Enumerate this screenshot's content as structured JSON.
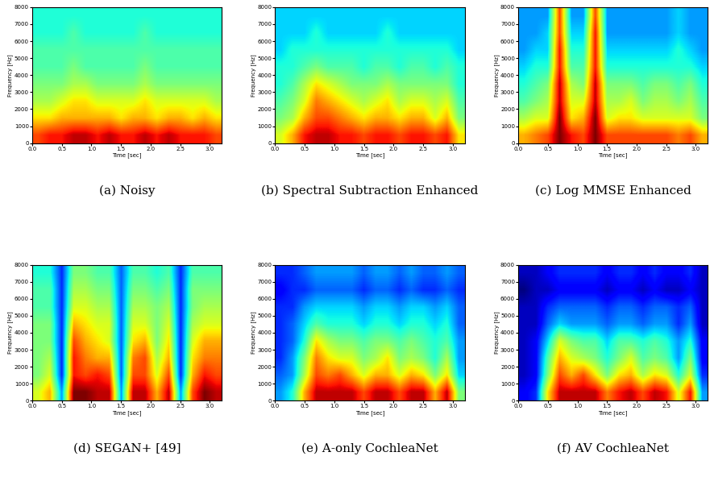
{
  "chart_data": [
    {
      "type": "heatmap",
      "caption": "(a) Noisy",
      "x_label": "Time [sec]",
      "y_label": "Frequency [Hz]",
      "xlim": [
        0,
        3.2
      ],
      "ylim": [
        0,
        8000
      ],
      "xticks": [
        {
          "value": 0,
          "label": "0.0"
        },
        {
          "value": 0.5,
          "label": "0.5"
        },
        {
          "value": 1,
          "label": "1.0"
        },
        {
          "value": 1.5,
          "label": "1.5"
        },
        {
          "value": 2,
          "label": "2.0"
        },
        {
          "value": 2.5,
          "label": "2.5"
        },
        {
          "value": 3,
          "label": "3.0"
        }
      ],
      "yticks": [
        0,
        1000,
        2000,
        3000,
        4000,
        5000,
        6000,
        7000,
        8000
      ],
      "cells": [
        [
          8,
          8.5,
          8.5,
          9,
          9,
          8.5,
          9,
          8.5,
          8.5,
          9,
          8.5,
          9,
          8.5,
          8.5,
          8.5,
          8
        ],
        [
          6.5,
          6.5,
          7,
          7,
          7,
          7,
          7,
          6.5,
          7,
          7,
          6.5,
          7,
          7,
          6.5,
          7,
          6.5
        ],
        [
          5.5,
          5.5,
          6,
          6.5,
          6.5,
          6,
          6,
          6,
          6,
          6.5,
          6,
          6,
          6,
          6,
          6,
          5.5
        ],
        [
          5,
          5,
          5,
          5.5,
          5.5,
          5,
          5,
          5,
          5,
          5.5,
          5,
          5,
          5,
          5,
          5,
          5
        ],
        [
          4.5,
          4.5,
          4.5,
          5,
          4.5,
          4.5,
          4.5,
          4.5,
          4.5,
          5,
          4.5,
          4.5,
          4.5,
          4.5,
          4.5,
          4.5
        ],
        [
          4.5,
          4.5,
          4.5,
          4.5,
          4.5,
          4.5,
          4.5,
          4.5,
          4.5,
          4.5,
          4.5,
          4.5,
          4.5,
          4.5,
          4.5,
          4.5
        ],
        [
          4,
          4,
          4,
          4.5,
          4,
          4,
          4,
          4,
          4,
          4.5,
          4,
          4,
          4,
          4,
          4,
          4
        ],
        [
          4,
          4,
          4,
          4,
          4,
          4,
          4,
          4,
          4,
          4,
          4,
          4,
          4,
          4,
          4,
          4
        ]
      ]
    },
    {
      "type": "heatmap",
      "caption": "(b) Spectral Subtraction Enhanced",
      "x_label": "Time [sec]",
      "y_label": "Frequency [Hz]",
      "xlim": [
        0,
        3.2
      ],
      "ylim": [
        0,
        8000
      ],
      "xticks": [
        {
          "value": 0,
          "label": "0.0"
        },
        {
          "value": 0.5,
          "label": "0.5"
        },
        {
          "value": 1,
          "label": "1.0"
        },
        {
          "value": 1.5,
          "label": "1.5"
        },
        {
          "value": 2,
          "label": "2.0"
        },
        {
          "value": 2.5,
          "label": "2.5"
        },
        {
          "value": 3,
          "label": "3.0"
        }
      ],
      "yticks": [
        0,
        1000,
        2000,
        3000,
        4000,
        5000,
        6000,
        7000,
        8000
      ],
      "cells": [
        [
          6,
          7,
          8.5,
          9,
          9,
          8.5,
          8.5,
          8,
          8.5,
          8.5,
          8,
          8.5,
          8.5,
          8,
          8.5,
          6.5
        ],
        [
          5,
          5.5,
          7,
          8,
          8,
          7.5,
          7,
          6.5,
          7,
          7,
          6.5,
          7,
          7,
          6,
          7,
          5
        ],
        [
          4.5,
          5,
          6,
          7.5,
          7,
          6.5,
          6,
          5.5,
          6,
          6.5,
          5.5,
          6,
          6,
          5.5,
          6,
          4.5
        ],
        [
          4,
          4.5,
          5.5,
          6.5,
          6,
          5.5,
          5,
          5,
          5,
          5.5,
          5,
          5,
          5,
          5,
          5,
          4
        ],
        [
          4,
          4,
          4.5,
          5,
          4.5,
          4.5,
          4.5,
          4,
          4.5,
          4.5,
          4,
          4.5,
          4.5,
          4,
          4.5,
          4
        ],
        [
          3.5,
          4,
          4,
          4,
          4,
          4,
          4,
          4,
          4,
          4,
          4,
          4,
          4,
          4,
          4,
          3.5
        ],
        [
          3.5,
          3.5,
          3.5,
          4,
          3.5,
          3.5,
          3.5,
          3.5,
          3.5,
          4,
          3.5,
          3.5,
          3.5,
          3.5,
          3.5,
          3.5
        ],
        [
          3.5,
          3.5,
          3.5,
          3.5,
          3.5,
          3.5,
          3.5,
          3.5,
          3.5,
          3.5,
          3.5,
          3.5,
          3.5,
          3.5,
          3.5,
          3.5
        ]
      ]
    },
    {
      "type": "heatmap",
      "caption": "(c) Log MMSE Enhanced",
      "x_label": "Time [sec]",
      "y_label": "Frequency [Hz]",
      "xlim": [
        0,
        3.2
      ],
      "ylim": [
        0,
        8000
      ],
      "xticks": [
        {
          "value": 0,
          "label": "0.0"
        },
        {
          "value": 0.5,
          "label": "0.5"
        },
        {
          "value": 1,
          "label": "1.0"
        },
        {
          "value": 1.5,
          "label": "1.5"
        },
        {
          "value": 2,
          "label": "2.0"
        },
        {
          "value": 2.5,
          "label": "2.5"
        },
        {
          "value": 3,
          "label": "3.0"
        }
      ],
      "yticks": [
        0,
        1000,
        2000,
        3000,
        4000,
        5000,
        6000,
        7000,
        8000
      ],
      "cells": [
        [
          7,
          7.5,
          8,
          9.5,
          8.5,
          8,
          9.5,
          8,
          8,
          8,
          8,
          8,
          8,
          7.5,
          8,
          7
        ],
        [
          5.5,
          6,
          6,
          9.5,
          6.5,
          7,
          9.5,
          6,
          6.5,
          6.5,
          6,
          6,
          6,
          6,
          6,
          5
        ],
        [
          4.5,
          5,
          5.5,
          9,
          6,
          6,
          9,
          5.5,
          5.5,
          6,
          5,
          5.5,
          5.5,
          5,
          5.5,
          4.5
        ],
        [
          4,
          4.5,
          5,
          9,
          5.5,
          5,
          9,
          5,
          5,
          5,
          4.5,
          5,
          5,
          4.5,
          5,
          4
        ],
        [
          3.5,
          4,
          4,
          8.5,
          4.5,
          4.5,
          8.5,
          4,
          4,
          4,
          4,
          4,
          4,
          4,
          4,
          3.5
        ],
        [
          3,
          3.5,
          3.5,
          8.5,
          4,
          4,
          8.5,
          3.5,
          3.5,
          3.5,
          3.5,
          3.5,
          3.5,
          4,
          3.5,
          3
        ],
        [
          3,
          3,
          3.5,
          8,
          3.5,
          3.5,
          8.5,
          3,
          3,
          3,
          3,
          3,
          3,
          3.5,
          3,
          3
        ],
        [
          3,
          3,
          3,
          8,
          3,
          3,
          8,
          3,
          3,
          3,
          3,
          3,
          3,
          3.5,
          3,
          3
        ]
      ]
    },
    {
      "type": "heatmap",
      "caption": "(d) SEGAN+ [49]",
      "x_label": "Time [sec]",
      "y_label": "Frequency [Hz]",
      "xlim": [
        0,
        3.2
      ],
      "ylim": [
        0,
        8000
      ],
      "xticks": [
        {
          "value": 0,
          "label": "0.0"
        },
        {
          "value": 0.5,
          "label": "0.5"
        },
        {
          "value": 1,
          "label": "1.0"
        },
        {
          "value": 1.5,
          "label": "1.5"
        },
        {
          "value": 2,
          "label": "2.0"
        },
        {
          "value": 2.5,
          "label": "2.5"
        },
        {
          "value": 3,
          "label": "3.0"
        }
      ],
      "yticks": [
        0,
        1000,
        2000,
        3000,
        4000,
        5000,
        6000,
        7000,
        8000
      ],
      "cells": [
        [
          6,
          7,
          3,
          9.5,
          9.5,
          9,
          9,
          3,
          9,
          9,
          7,
          9,
          3,
          8,
          9.5,
          9
        ],
        [
          5,
          6,
          2,
          8.5,
          8,
          8.5,
          8,
          2.5,
          8,
          8,
          6,
          8,
          2,
          7,
          8.5,
          8
        ],
        [
          5,
          5.5,
          2,
          8.5,
          7.5,
          7,
          7,
          2.5,
          7.5,
          8,
          5.5,
          7,
          2,
          6.5,
          7.5,
          7.5
        ],
        [
          5,
          5,
          2,
          8,
          7,
          6.5,
          6,
          2.5,
          6.5,
          7,
          5,
          6.5,
          2,
          6,
          7,
          7
        ],
        [
          5,
          5,
          2,
          7,
          6.5,
          6,
          6,
          2.5,
          6,
          6,
          5,
          6,
          2,
          5.5,
          6,
          6
        ],
        [
          4.5,
          4.5,
          2,
          6,
          6,
          5.5,
          5.5,
          2.5,
          5.5,
          5.5,
          5,
          5.5,
          2,
          5,
          5.5,
          5.5
        ],
        [
          4.5,
          4.5,
          2,
          5.5,
          5.5,
          5,
          5,
          2.5,
          5,
          5,
          4.5,
          5,
          2,
          5,
          5,
          5
        ],
        [
          4,
          4,
          2,
          5,
          5,
          4.5,
          4.5,
          2.5,
          4.5,
          4.5,
          4,
          4.5,
          2,
          4.5,
          4.5,
          4.5
        ]
      ]
    },
    {
      "type": "heatmap",
      "caption": "(e) A-only CochleaNet",
      "x_label": "Time [sec]",
      "y_label": "Frequency [Hz]",
      "xlim": [
        0,
        3.2
      ],
      "ylim": [
        0,
        8000
      ],
      "xticks": [
        {
          "value": 0,
          "label": "0.0"
        },
        {
          "value": 0.5,
          "label": "0.5"
        },
        {
          "value": 1,
          "label": "1.0"
        },
        {
          "value": 1.5,
          "label": "1.5"
        },
        {
          "value": 2,
          "label": "2.0"
        },
        {
          "value": 2.5,
          "label": "2.5"
        },
        {
          "value": 3,
          "label": "3.0"
        }
      ],
      "yticks": [
        0,
        1000,
        2000,
        3000,
        4000,
        5000,
        6000,
        7000,
        8000
      ],
      "cells": [
        [
          3,
          4,
          7,
          9,
          9,
          9,
          9,
          8,
          9,
          9,
          8,
          9,
          9,
          7,
          9,
          5
        ],
        [
          2.5,
          3,
          5.5,
          8,
          7.5,
          8,
          7,
          6,
          7,
          7,
          6,
          7,
          6.5,
          5,
          6.5,
          3.5
        ],
        [
          2,
          3,
          5,
          7.5,
          6.5,
          6,
          6,
          5,
          5.5,
          6.5,
          5,
          5.5,
          5,
          4,
          5.5,
          3
        ],
        [
          2,
          2.5,
          4,
          6.5,
          5.5,
          5,
          5,
          4.5,
          5,
          5,
          4.5,
          5,
          4.5,
          4,
          4.5,
          3
        ],
        [
          2,
          2.5,
          3.5,
          4.5,
          4,
          4,
          4,
          3.5,
          4,
          4,
          3.5,
          4,
          4,
          3.5,
          4,
          2.5
        ],
        [
          2,
          2,
          3,
          3.5,
          3.5,
          3.5,
          3.5,
          3,
          3.5,
          3.5,
          3,
          3.5,
          3.5,
          3,
          3.5,
          2.5
        ],
        [
          1.5,
          2,
          2,
          2.5,
          2.5,
          2.5,
          2.5,
          2,
          2.5,
          2.5,
          2,
          2.5,
          2,
          2,
          2.5,
          2
        ],
        [
          2,
          2,
          2.5,
          3,
          3,
          3,
          3,
          2.5,
          3,
          3,
          2.5,
          3,
          2.5,
          2.5,
          3,
          2.5
        ]
      ]
    },
    {
      "type": "heatmap",
      "caption": "(f) AV CochleaNet",
      "x_label": "Time [sec]",
      "y_label": "Frequency [Hz]",
      "xlim": [
        0,
        3.2
      ],
      "ylim": [
        0,
        8000
      ],
      "xticks": [
        {
          "value": 0,
          "label": "0.0"
        },
        {
          "value": 0.5,
          "label": "0.5"
        },
        {
          "value": 1,
          "label": "1.0"
        },
        {
          "value": 1.5,
          "label": "1.5"
        },
        {
          "value": 2,
          "label": "2.0"
        },
        {
          "value": 2.5,
          "label": "2.5"
        },
        {
          "value": 3,
          "label": "3.0"
        }
      ],
      "yticks": [
        0,
        1000,
        2000,
        3000,
        4000,
        5000,
        6000,
        7000,
        8000
      ],
      "cells": [
        [
          1.5,
          2,
          6.5,
          9,
          9,
          9,
          9,
          7.5,
          8.5,
          9,
          8,
          9,
          8.5,
          6,
          8.5,
          3
        ],
        [
          1,
          1.5,
          5,
          8,
          7,
          8,
          6.5,
          5,
          6.5,
          7,
          5.5,
          6.5,
          6,
          4,
          6,
          2
        ],
        [
          1,
          1.5,
          4.5,
          7,
          6,
          5.5,
          5,
          4,
          5,
          6,
          4.5,
          5,
          4.5,
          3,
          5,
          1.5
        ],
        [
          1,
          1.5,
          3.5,
          6,
          5,
          4.5,
          4.5,
          3.5,
          4.5,
          4.5,
          4,
          4.5,
          4,
          3,
          4,
          1.5
        ],
        [
          1,
          1,
          2.5,
          3.5,
          3,
          3,
          3,
          2.5,
          3,
          3,
          2.5,
          3,
          3,
          2,
          3,
          1
        ],
        [
          1,
          1,
          2,
          2.5,
          2.5,
          2.5,
          2.5,
          2,
          2.5,
          2.5,
          2,
          2.5,
          2.5,
          2,
          2.5,
          1
        ],
        [
          0.5,
          1,
          1,
          1.5,
          1.5,
          1.5,
          1.5,
          1,
          1.5,
          1.5,
          1,
          1.5,
          1,
          1,
          1.5,
          1
        ],
        [
          1,
          1,
          1.5,
          2,
          2,
          2,
          2,
          1.5,
          2,
          2,
          1.5,
          2,
          1.5,
          1.5,
          2,
          1
        ]
      ]
    }
  ]
}
